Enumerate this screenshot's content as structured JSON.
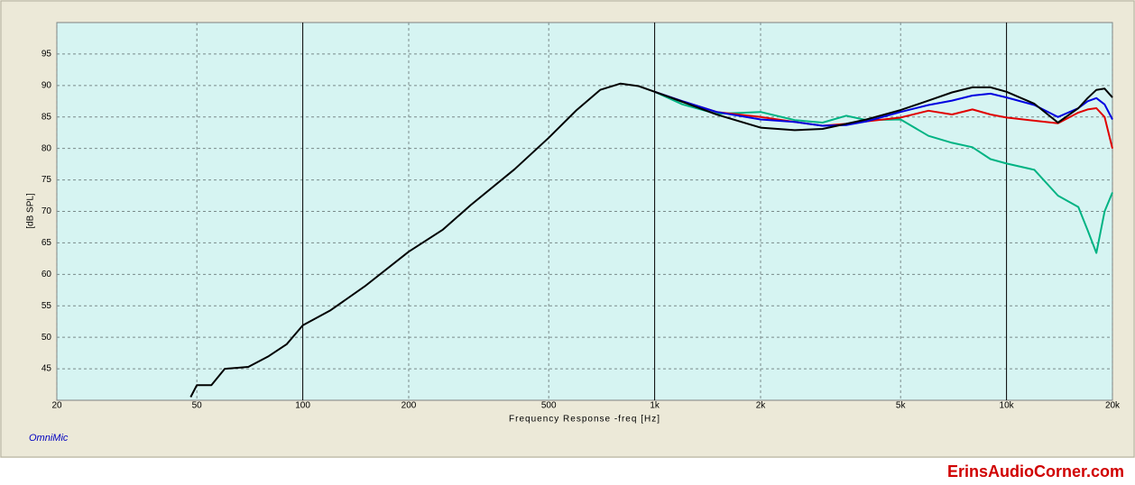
{
  "chart_data": {
    "type": "line",
    "x_label": "Frequency Response -freq [Hz]",
    "y_label": "[dB SPL]",
    "watermark": "OmniMic",
    "site": "ErinsAudioCorner.com",
    "x_log": true,
    "grid": true,
    "xlim": [
      20,
      20000
    ],
    "ylim": [
      40,
      100
    ],
    "xticks": [
      20,
      50,
      100,
      200,
      500,
      {
        "value": 1000,
        "label": "1k"
      },
      {
        "value": 2000,
        "label": "2k"
      },
      {
        "value": 5000,
        "label": "5k"
      },
      {
        "value": 10000,
        "label": "10k"
      },
      {
        "value": 20000,
        "label": "20k"
      }
    ],
    "yticks": [
      45,
      50,
      55,
      60,
      65,
      70,
      75,
      80,
      85,
      90,
      95
    ],
    "x": [
      48,
      50,
      55,
      60,
      70,
      80,
      90,
      100,
      120,
      150,
      200,
      250,
      300,
      400,
      500,
      600,
      700,
      800,
      900,
      1000,
      1200,
      1500,
      2000,
      2500,
      3000,
      3500,
      4000,
      5000,
      6000,
      7000,
      8000,
      9000,
      10000,
      12000,
      14000,
      16000,
      17000,
      18000,
      19000,
      20000
    ],
    "series": [
      {
        "color": "#00b383",
        "values": [
          null,
          null,
          null,
          null,
          null,
          null,
          null,
          null,
          null,
          null,
          null,
          null,
          null,
          null,
          null,
          null,
          null,
          null,
          null,
          89,
          87,
          85.5,
          85.8,
          84.5,
          84.1,
          85.2,
          84.5,
          84.6,
          82,
          80.9,
          80.2,
          78.3,
          77.6,
          76.6,
          72.5,
          70.7,
          67,
          63.4,
          70,
          73
        ]
      },
      {
        "color": "#e00000",
        "values": [
          null,
          null,
          null,
          null,
          null,
          null,
          null,
          null,
          null,
          null,
          null,
          null,
          null,
          null,
          null,
          null,
          null,
          null,
          null,
          89,
          87.5,
          85.8,
          85,
          84.2,
          83.6,
          83.9,
          84.3,
          84.9,
          86,
          85.4,
          86.2,
          85.4,
          84.9,
          84.4,
          84,
          85.7,
          86.2,
          86.4,
          85,
          80
        ]
      },
      {
        "color": "#0000e0",
        "values": [
          null,
          null,
          null,
          null,
          null,
          null,
          null,
          null,
          null,
          null,
          null,
          null,
          null,
          null,
          null,
          null,
          null,
          null,
          null,
          89,
          87.5,
          85.8,
          84.6,
          84.2,
          83.6,
          83.7,
          84.3,
          85.8,
          86.9,
          87.6,
          88.4,
          88.7,
          88.1,
          86.9,
          85,
          86.4,
          87.5,
          88,
          87,
          84.6
        ]
      },
      {
        "color": "#000000",
        "values": [
          40.5,
          42.4,
          42.4,
          45,
          45.3,
          47,
          48.9,
          51.9,
          54.3,
          58.1,
          63.6,
          67.1,
          71,
          76.7,
          81.7,
          86.1,
          89.3,
          90.3,
          89.9,
          89,
          87.4,
          85.4,
          83.3,
          82.9,
          83.1,
          83.9,
          84.6,
          86.1,
          87.6,
          88.9,
          89.7,
          89.7,
          89,
          87.1,
          84.1,
          86.4,
          88,
          89.3,
          89.5,
          88.1
        ]
      }
    ]
  }
}
